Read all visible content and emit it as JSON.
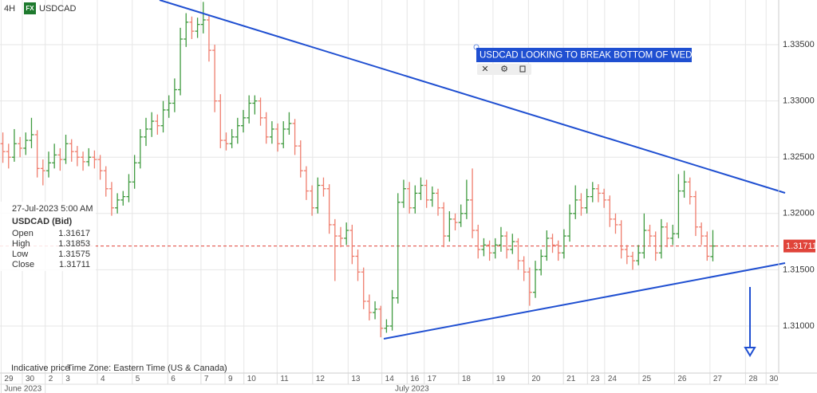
{
  "header": {
    "interval": "4H",
    "badge": "FX",
    "symbol": "USDCAD"
  },
  "legend": {
    "time": "27-Jul-2023 5:00 AM",
    "symbol": "USDCAD (Bid)",
    "labels": [
      "Open",
      "High",
      "Low",
      "Close"
    ]
  },
  "footer": {
    "note": "Indicative price",
    "timezone": "Time Zone: Eastern Time (US & Canada)"
  },
  "chart_data": {
    "type": "ohlc",
    "annotation": "USDCAD LOOKING TO BREAK BOTTOM OF WEDGE",
    "up_color": "#3f9a3f",
    "down_color": "#ef7d6d",
    "grid": true,
    "ylim": [
      1.30582,
      1.33897
    ],
    "yticks": [
      {
        "value": 1.31,
        "label": "1.31000"
      },
      {
        "value": 1.315,
        "label": "1.31500"
      },
      {
        "value": 1.32,
        "label": "1.32000"
      },
      {
        "value": 1.325,
        "label": "1.32500"
      },
      {
        "value": 1.33,
        "label": "1.33000"
      },
      {
        "value": 1.335,
        "label": "1.33500"
      }
    ],
    "xlim": [
      0,
      136
    ],
    "xticks": [
      {
        "value": 0.2,
        "label": "29"
      },
      {
        "value": 3.9,
        "label": "30"
      },
      {
        "value": 7.9,
        "label": "2"
      },
      {
        "value": 10.9,
        "label": "3"
      },
      {
        "value": 17,
        "label": "4"
      },
      {
        "value": 23.1,
        "label": "5"
      },
      {
        "value": 29.3,
        "label": "6"
      },
      {
        "value": 35.1,
        "label": "7"
      },
      {
        "value": 39.3,
        "label": "9"
      },
      {
        "value": 42.6,
        "label": "10"
      },
      {
        "value": 48.4,
        "label": "11"
      },
      {
        "value": 54.6,
        "label": "12"
      },
      {
        "value": 60.8,
        "label": "13"
      },
      {
        "value": 66.7,
        "label": "14"
      },
      {
        "value": 71.1,
        "label": "16"
      },
      {
        "value": 74.1,
        "label": "17"
      },
      {
        "value": 80.1,
        "label": "18"
      },
      {
        "value": 86.1,
        "label": "19"
      },
      {
        "value": 92.3,
        "label": "20"
      },
      {
        "value": 98.4,
        "label": "21"
      },
      {
        "value": 102.6,
        "label": "23"
      },
      {
        "value": 105.6,
        "label": "24"
      },
      {
        "value": 111.6,
        "label": "25"
      },
      {
        "value": 117.8,
        "label": "26"
      },
      {
        "value": 124,
        "label": "27"
      },
      {
        "value": 130.2,
        "label": "28"
      },
      {
        "value": 133.8,
        "label": "30"
      }
    ],
    "months": [
      {
        "value": 0.2,
        "label": "June 2023"
      },
      {
        "value": 7.9,
        "label": "July 2023"
      }
    ],
    "ohlc": [
      [
        1.3262,
        1.3272,
        1.3245,
        1.3255
      ],
      [
        1.3255,
        1.3262,
        1.324,
        1.325
      ],
      [
        1.325,
        1.3275,
        1.3246,
        1.3262
      ],
      [
        1.3262,
        1.3268,
        1.325,
        1.3258
      ],
      [
        1.3258,
        1.3272,
        1.3252,
        1.3265
      ],
      [
        1.3265,
        1.3285,
        1.3258,
        1.327
      ],
      [
        1.327,
        1.3274,
        1.3232,
        1.324
      ],
      [
        1.324,
        1.3248,
        1.3225,
        1.3238
      ],
      [
        1.3238,
        1.3255,
        1.3232,
        1.3245
      ],
      [
        1.3245,
        1.3262,
        1.324,
        1.3252
      ],
      [
        1.3252,
        1.3258,
        1.3238,
        1.3248
      ],
      [
        1.3248,
        1.327,
        1.3244,
        1.3262
      ],
      [
        1.3262,
        1.3266,
        1.3246,
        1.3255
      ],
      [
        1.3255,
        1.326,
        1.3242,
        1.325
      ],
      [
        1.325,
        1.3255,
        1.3238,
        1.3246
      ],
      [
        1.3246,
        1.3258,
        1.3242,
        1.325
      ],
      [
        1.325,
        1.3256,
        1.324,
        1.3248
      ],
      [
        1.3248,
        1.3252,
        1.323,
        1.3238
      ],
      [
        1.3238,
        1.3242,
        1.3215,
        1.3222
      ],
      [
        1.3222,
        1.3228,
        1.3198,
        1.3205
      ],
      [
        1.3205,
        1.3218,
        1.32,
        1.3212
      ],
      [
        1.3212,
        1.322,
        1.3207,
        1.3215
      ],
      [
        1.3215,
        1.3235,
        1.321,
        1.3228
      ],
      [
        1.3228,
        1.3252,
        1.3222,
        1.3245
      ],
      [
        1.3245,
        1.3275,
        1.324,
        1.3268
      ],
      [
        1.3268,
        1.3285,
        1.326,
        1.3275
      ],
      [
        1.3275,
        1.329,
        1.3268,
        1.3282
      ],
      [
        1.3282,
        1.3288,
        1.327,
        1.3278
      ],
      [
        1.3278,
        1.33,
        1.3272,
        1.3292
      ],
      [
        1.3292,
        1.3305,
        1.3285,
        1.3298
      ],
      [
        1.3298,
        1.332,
        1.329,
        1.331
      ],
      [
        1.331,
        1.3365,
        1.3305,
        1.3355
      ],
      [
        1.3355,
        1.3378,
        1.3348,
        1.337
      ],
      [
        1.337,
        1.3375,
        1.3355,
        1.3362
      ],
      [
        1.3362,
        1.3374,
        1.3356,
        1.3368
      ],
      [
        1.3368,
        1.3388,
        1.336,
        1.3372
      ],
      [
        1.3372,
        1.3376,
        1.3335,
        1.3345
      ],
      [
        1.3345,
        1.335,
        1.329,
        1.33
      ],
      [
        1.33,
        1.3306,
        1.3258,
        1.3265
      ],
      [
        1.3265,
        1.3272,
        1.3256,
        1.3262
      ],
      [
        1.3262,
        1.3275,
        1.3258,
        1.3268
      ],
      [
        1.3268,
        1.3285,
        1.3262,
        1.3278
      ],
      [
        1.3278,
        1.3292,
        1.3272,
        1.3285
      ],
      [
        1.3285,
        1.3305,
        1.328,
        1.3298
      ],
      [
        1.3298,
        1.3305,
        1.3288,
        1.33
      ],
      [
        1.33,
        1.3303,
        1.3278,
        1.3285
      ],
      [
        1.3285,
        1.329,
        1.3262,
        1.3268
      ],
      [
        1.3268,
        1.3282,
        1.3262,
        1.3275
      ],
      [
        1.3275,
        1.328,
        1.3255,
        1.3262
      ],
      [
        1.3262,
        1.3282,
        1.3258,
        1.3275
      ],
      [
        1.3275,
        1.329,
        1.327,
        1.328
      ],
      [
        1.328,
        1.3284,
        1.3252,
        1.326
      ],
      [
        1.326,
        1.3265,
        1.3232,
        1.3238
      ],
      [
        1.3238,
        1.3242,
        1.3212,
        1.322
      ],
      [
        1.322,
        1.3225,
        1.3198,
        1.3205
      ],
      [
        1.3205,
        1.3232,
        1.32,
        1.3225
      ],
      [
        1.3225,
        1.3232,
        1.3215,
        1.3222
      ],
      [
        1.3222,
        1.3226,
        1.3182,
        1.319
      ],
      [
        1.319,
        1.3195,
        1.314,
        1.318
      ],
      [
        1.318,
        1.3188,
        1.317,
        1.3178
      ],
      [
        1.3178,
        1.3192,
        1.3172,
        1.3185
      ],
      [
        1.3185,
        1.319,
        1.3155,
        1.3162
      ],
      [
        1.3162,
        1.3168,
        1.314,
        1.3148
      ],
      [
        1.3148,
        1.3152,
        1.3115,
        1.3122
      ],
      [
        1.3122,
        1.3128,
        1.3105,
        1.3112
      ],
      [
        1.3112,
        1.3122,
        1.3106,
        1.3115
      ],
      [
        1.3115,
        1.3118,
        1.309,
        1.3098
      ],
      [
        1.3098,
        1.3106,
        1.3094,
        1.31
      ],
      [
        1.31,
        1.3132,
        1.3096,
        1.3125
      ],
      [
        1.3125,
        1.3218,
        1.312,
        1.321
      ],
      [
        1.321,
        1.323,
        1.3205,
        1.3222
      ],
      [
        1.3222,
        1.3228,
        1.32,
        1.3205
      ],
      [
        1.3205,
        1.3225,
        1.32,
        1.3218
      ],
      [
        1.3218,
        1.3232,
        1.3212,
        1.3225
      ],
      [
        1.3225,
        1.323,
        1.3205,
        1.3212
      ],
      [
        1.3212,
        1.3224,
        1.3206,
        1.3218
      ],
      [
        1.3218,
        1.3222,
        1.3198,
        1.3205
      ],
      [
        1.3205,
        1.321,
        1.317,
        1.318
      ],
      [
        1.318,
        1.3202,
        1.3175,
        1.3195
      ],
      [
        1.3195,
        1.32,
        1.3185,
        1.3192
      ],
      [
        1.3192,
        1.3208,
        1.3188,
        1.32
      ],
      [
        1.32,
        1.323,
        1.3195,
        1.3212
      ],
      [
        1.3212,
        1.324,
        1.3178,
        1.3185
      ],
      [
        1.3185,
        1.319,
        1.316,
        1.3168
      ],
      [
        1.3168,
        1.3178,
        1.3162,
        1.3172
      ],
      [
        1.3172,
        1.3176,
        1.3158,
        1.3165
      ],
      [
        1.3165,
        1.3178,
        1.316,
        1.3172
      ],
      [
        1.3172,
        1.3188,
        1.3166,
        1.318
      ],
      [
        1.318,
        1.3184,
        1.316,
        1.3168
      ],
      [
        1.3168,
        1.3182,
        1.3164,
        1.3175
      ],
      [
        1.3175,
        1.3178,
        1.315,
        1.3158
      ],
      [
        1.3158,
        1.3162,
        1.314,
        1.3148
      ],
      [
        1.3148,
        1.3152,
        1.3118,
        1.313
      ],
      [
        1.313,
        1.3158,
        1.3125,
        1.315
      ],
      [
        1.315,
        1.3168,
        1.3145,
        1.3162
      ],
      [
        1.3162,
        1.3185,
        1.3158,
        1.3178
      ],
      [
        1.3178,
        1.3182,
        1.3165,
        1.3172
      ],
      [
        1.3172,
        1.3176,
        1.3158,
        1.3165
      ],
      [
        1.3165,
        1.3186,
        1.316,
        1.318
      ],
      [
        1.318,
        1.3208,
        1.3175,
        1.32
      ],
      [
        1.32,
        1.3225,
        1.3195,
        1.3212
      ],
      [
        1.3212,
        1.3218,
        1.3198,
        1.3205
      ],
      [
        1.3205,
        1.3222,
        1.32,
        1.3215
      ],
      [
        1.3215,
        1.3228,
        1.321,
        1.3222
      ],
      [
        1.3222,
        1.3226,
        1.321,
        1.3218
      ],
      [
        1.3218,
        1.3222,
        1.3205,
        1.3212
      ],
      [
        1.3212,
        1.3216,
        1.3188,
        1.3195
      ],
      [
        1.3195,
        1.32,
        1.3182,
        1.319
      ],
      [
        1.319,
        1.3194,
        1.316,
        1.3168
      ],
      [
        1.3168,
        1.3172,
        1.3155,
        1.3162
      ],
      [
        1.3162,
        1.3166,
        1.315,
        1.3158
      ],
      [
        1.3158,
        1.3172,
        1.3154,
        1.3165
      ],
      [
        1.3165,
        1.32,
        1.316,
        1.3185
      ],
      [
        1.3185,
        1.319,
        1.3172,
        1.318
      ],
      [
        1.318,
        1.3184,
        1.3158,
        1.3165
      ],
      [
        1.3165,
        1.3195,
        1.316,
        1.3188
      ],
      [
        1.3188,
        1.3192,
        1.317,
        1.3178
      ],
      [
        1.3178,
        1.319,
        1.3172,
        1.3182
      ],
      [
        1.3182,
        1.3235,
        1.3178,
        1.322
      ],
      [
        1.322,
        1.3238,
        1.3214,
        1.3228
      ],
      [
        1.3228,
        1.3232,
        1.3208,
        1.3215
      ],
      [
        1.3215,
        1.322,
        1.318,
        1.3188
      ],
      [
        1.3188,
        1.3192,
        1.3172,
        1.318
      ],
      [
        1.318,
        1.3184,
        1.3158,
        1.3162
      ],
      [
        1.31617,
        1.31853,
        1.31575,
        1.31711
      ]
    ]
  }
}
